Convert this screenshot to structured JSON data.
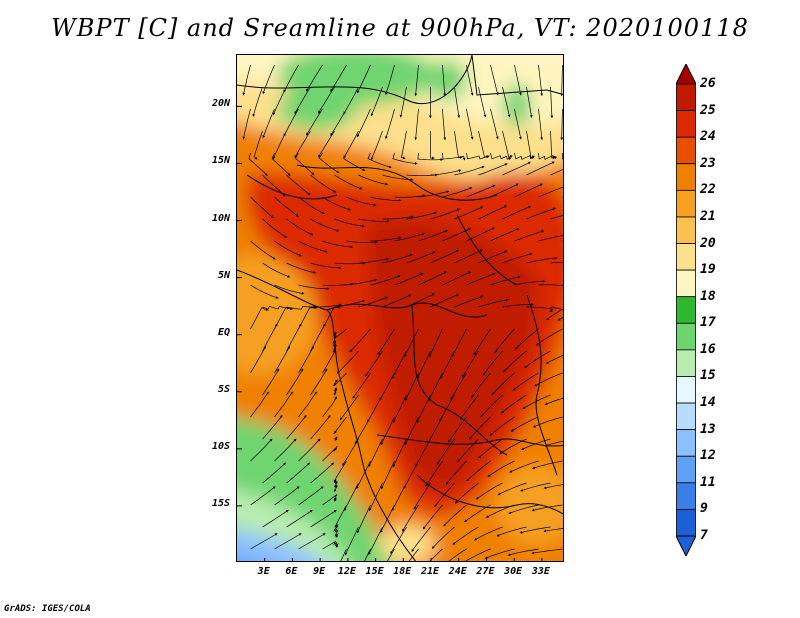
{
  "title": "WBPT [C] and Sreamline at 900hPa, VT: 2020100118",
  "credit": "GrADS: IGES/COLA",
  "map": {
    "lon_range": [
      0,
      35.5
    ],
    "lat_range": [
      -20,
      24.5
    ],
    "lat_ticks": [
      {
        "value": 20,
        "label": "20N"
      },
      {
        "value": 15,
        "label": "15N"
      },
      {
        "value": 10,
        "label": "10N"
      },
      {
        "value": 5,
        "label": "5N"
      },
      {
        "value": 0,
        "label": "EQ"
      },
      {
        "value": -5,
        "label": "5S"
      },
      {
        "value": -10,
        "label": "10S"
      },
      {
        "value": -15,
        "label": "15S"
      }
    ],
    "lon_ticks": [
      {
        "value": 3,
        "label": "3E"
      },
      {
        "value": 6,
        "label": "6E"
      },
      {
        "value": 9,
        "label": "9E"
      },
      {
        "value": 12,
        "label": "12E"
      },
      {
        "value": 15,
        "label": "15E"
      },
      {
        "value": 18,
        "label": "18E"
      },
      {
        "value": 21,
        "label": "21E"
      },
      {
        "value": 24,
        "label": "24E"
      },
      {
        "value": 27,
        "label": "27E"
      },
      {
        "value": 30,
        "label": "30E"
      },
      {
        "value": 33,
        "label": "33E"
      }
    ]
  },
  "colorbar": {
    "levels": [
      {
        "label": "26",
        "color": "#a50000"
      },
      {
        "label": "25",
        "color": "#c01a00"
      },
      {
        "label": "24",
        "color": "#dc2a00"
      },
      {
        "label": "23",
        "color": "#e84f00"
      },
      {
        "label": "22",
        "color": "#f08000"
      },
      {
        "label": "21",
        "color": "#f5a020"
      },
      {
        "label": "20",
        "color": "#fac050"
      },
      {
        "label": "19",
        "color": "#fde08c"
      },
      {
        "label": "18",
        "color": "#fff5c0"
      },
      {
        "label": "17",
        "color": "#2fb82f"
      },
      {
        "label": "16",
        "color": "#6fd46f"
      },
      {
        "label": "15",
        "color": "#b8ecb0"
      },
      {
        "label": "14",
        "color": "#e6f8ff"
      },
      {
        "label": "13",
        "color": "#b8dcff"
      },
      {
        "label": "12",
        "color": "#8cc0ff"
      },
      {
        "label": "11",
        "color": "#5ea0f5"
      },
      {
        "label": "9",
        "color": "#3a7ee8"
      },
      {
        "label": "7",
        "color": "#1f5fd6"
      }
    ],
    "top_color": "#a50000",
    "bottom_color": "#1f5fd6"
  }
}
